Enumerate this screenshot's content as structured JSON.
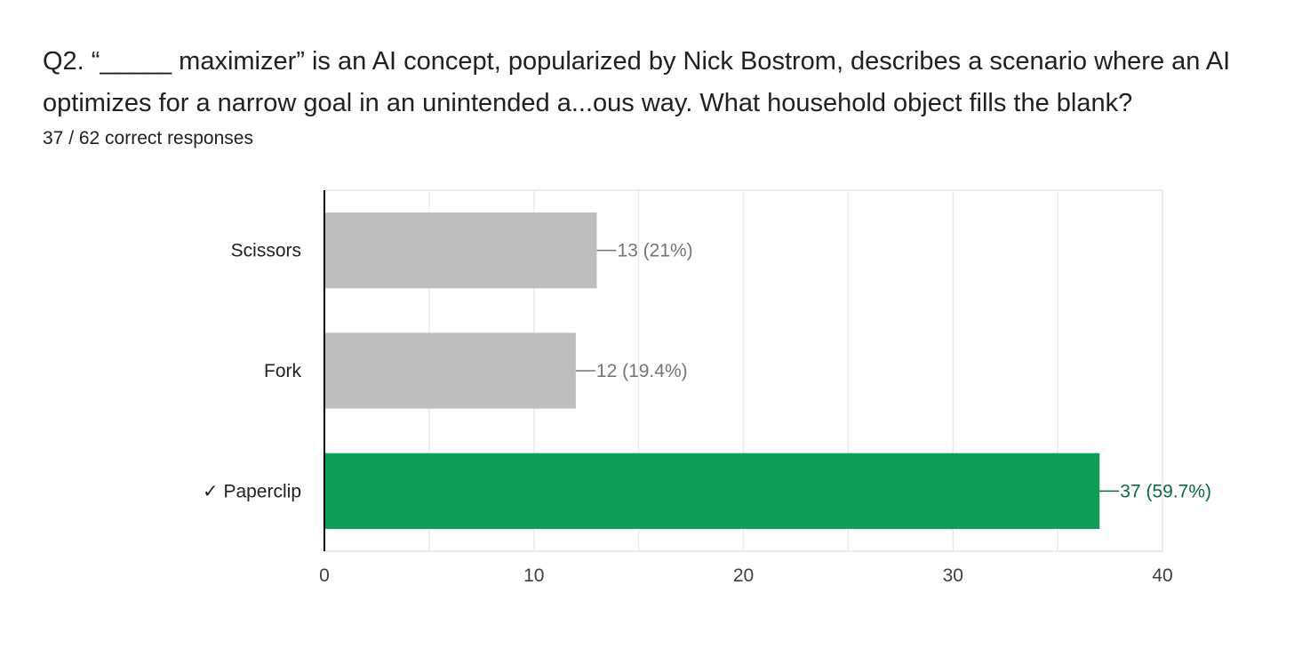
{
  "question": {
    "text": "Q2.  “_____ maximizer” is an AI concept, popularized by Nick Bostrom, describes a scenario where an AI optimizes for a narrow goal in an unintended a...ous way. What household object fills the blank?",
    "responses_summary": "37 / 62 correct responses"
  },
  "colors": {
    "incorrect_bar": "#bdbdbd",
    "correct_bar": "#0f9d58",
    "incorrect_label": "#757575",
    "correct_label": "#0b6b3a",
    "grid": "#ebebeb",
    "axis": "#000000"
  },
  "chart_data": {
    "type": "bar",
    "orientation": "horizontal",
    "title": "",
    "xlabel": "",
    "ylabel": "",
    "categories": [
      "Scissors",
      "Fork",
      "✓ Paperclip"
    ],
    "values": [
      13,
      12,
      37
    ],
    "data_labels": [
      "13 (21%)",
      "12 (19.4%)",
      "37 (59.7%)"
    ],
    "correct": [
      false,
      false,
      true
    ],
    "xlim": [
      0,
      40
    ],
    "x_ticks": [
      0,
      10,
      20,
      30,
      40
    ],
    "grid": true
  }
}
